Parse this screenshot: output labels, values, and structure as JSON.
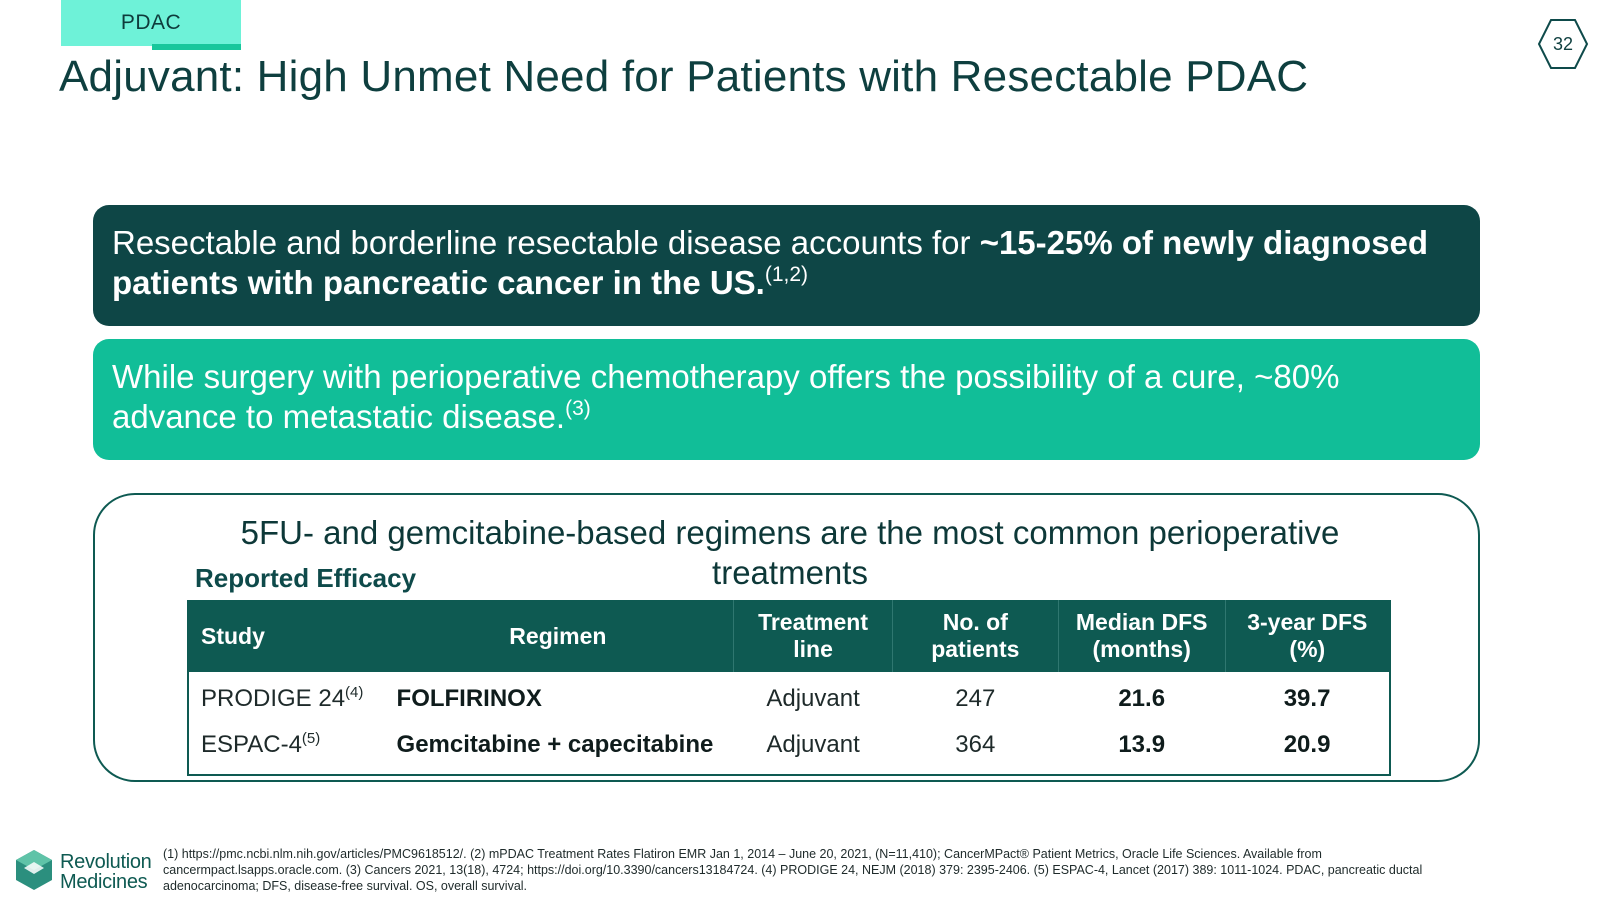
{
  "header": {
    "tag": "PDAC",
    "page_number": "32",
    "title": "Adjuvant: High Unmet Need for Patients with Resectable PDAC"
  },
  "callout_1": {
    "text_plain": "Resectable and borderline resectable disease accounts for ",
    "text_bold": "~15-25% of newly diagnosed patients with pancreatic cancer in the US.",
    "ref": "(1,2)"
  },
  "callout_2": {
    "text": "While surgery with perioperative chemotherapy offers the possibility of a cure, ~80% advance to metastatic disease.",
    "ref": "(3)"
  },
  "panel": {
    "heading": "5FU- and gemcitabine-based regimens are the most common perioperative treatments",
    "efficacy_label": "Reported Efficacy",
    "table": {
      "headers": [
        "Study",
        "Regimen",
        "Treatment line",
        "No. of patients",
        "Median DFS (months)",
        "3-year DFS (%)"
      ],
      "rows": [
        {
          "study": "PRODIGE 24",
          "ref": "(4)",
          "regimen": "FOLFIRINOX",
          "line": "Adjuvant",
          "patients": "247",
          "median_dfs": "21.6",
          "dfs_3yr": "39.7"
        },
        {
          "study": "ESPAC-4",
          "ref": "(5)",
          "regimen": "Gemcitabine + capecitabine",
          "line": "Adjuvant",
          "patients": "364",
          "median_dfs": "13.9",
          "dfs_3yr": "20.9"
        }
      ]
    }
  },
  "footer": {
    "logo_line1": "Revolution",
    "logo_line2": "Medicines",
    "footnote": "(1) https://pmc.ncbi.nlm.nih.gov/articles/PMC9618512/. (2) mPDAC Treatment Rates Flatiron EMR Jan 1, 2014 – June 20, 2021, (N=11,410); CancerMPact® Patient Metrics, Oracle Life Sciences. Available from cancermpact.lsapps.oracle.com. (3) Cancers 2021, 13(18), 4724; https://doi.org/10.3390/cancers13184724. (4) PRODIGE 24, NEJM (2018) 379: 2395-2406. (5) ESPAC-4, Lancet (2017) 389: 1011-1024. PDAC, pancreatic ductal adenocarcinoma; DFS, disease-free survival. OS, overall survival."
  },
  "colors": {
    "dark_teal": "#0e4646",
    "bright_teal": "#11be98",
    "mint": "#6ef2d8",
    "table_header": "#0e5a52"
  }
}
